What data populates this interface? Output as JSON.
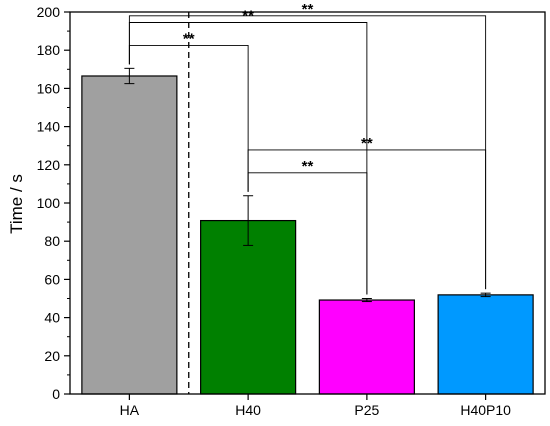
{
  "chart_data": {
    "type": "bar",
    "title": "",
    "xlabel": "",
    "ylabel": "Time / s",
    "ylim": [
      0,
      200
    ],
    "yticks": [
      0,
      20,
      40,
      60,
      80,
      100,
      120,
      140,
      160,
      180,
      200
    ],
    "categories": [
      "HA",
      "H40",
      "P25",
      "H40P10"
    ],
    "values": [
      166.5,
      90.8,
      49.2,
      51.9
    ],
    "errors": [
      4.0,
      13.0,
      0.8,
      0.9
    ],
    "colors": [
      "#a0a0a0",
      "#008000",
      "#ff00ff",
      "#0099ff"
    ],
    "divider_after_category": "HA",
    "grid": false,
    "legend": "none",
    "significance": [
      {
        "from": "HA",
        "to": "H40",
        "label": "**"
      },
      {
        "from": "HA",
        "to": "P25",
        "label": "**"
      },
      {
        "from": "HA",
        "to": "H40P10",
        "label": "**"
      },
      {
        "from": "H40",
        "to": "P25",
        "label": "**"
      },
      {
        "from": "H40",
        "to": "H40P10",
        "label": "**"
      }
    ]
  }
}
